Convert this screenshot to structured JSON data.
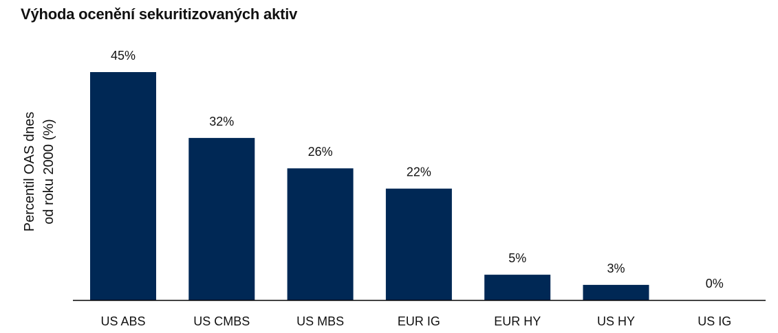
{
  "chart_data": {
    "type": "bar",
    "title": "Výhoda ocenění sekuritizovaných aktiv",
    "ylabel_lines": [
      "Percentil OAS dnes",
      "od roku 2000 (%)"
    ],
    "xlabel": "",
    "categories": [
      "US ABS",
      "US CMBS",
      "US MBS",
      "EUR IG",
      "EUR HY",
      "US HY",
      "US IG"
    ],
    "values": [
      45,
      32,
      26,
      22,
      5,
      3,
      0
    ],
    "data_labels": [
      "45%",
      "32%",
      "26%",
      "22%",
      "5%",
      "3%",
      "0%"
    ],
    "ylim": [
      0,
      45
    ],
    "grid": false,
    "legend": "none",
    "bar_color": "#002855",
    "axis_color": "#000000"
  }
}
